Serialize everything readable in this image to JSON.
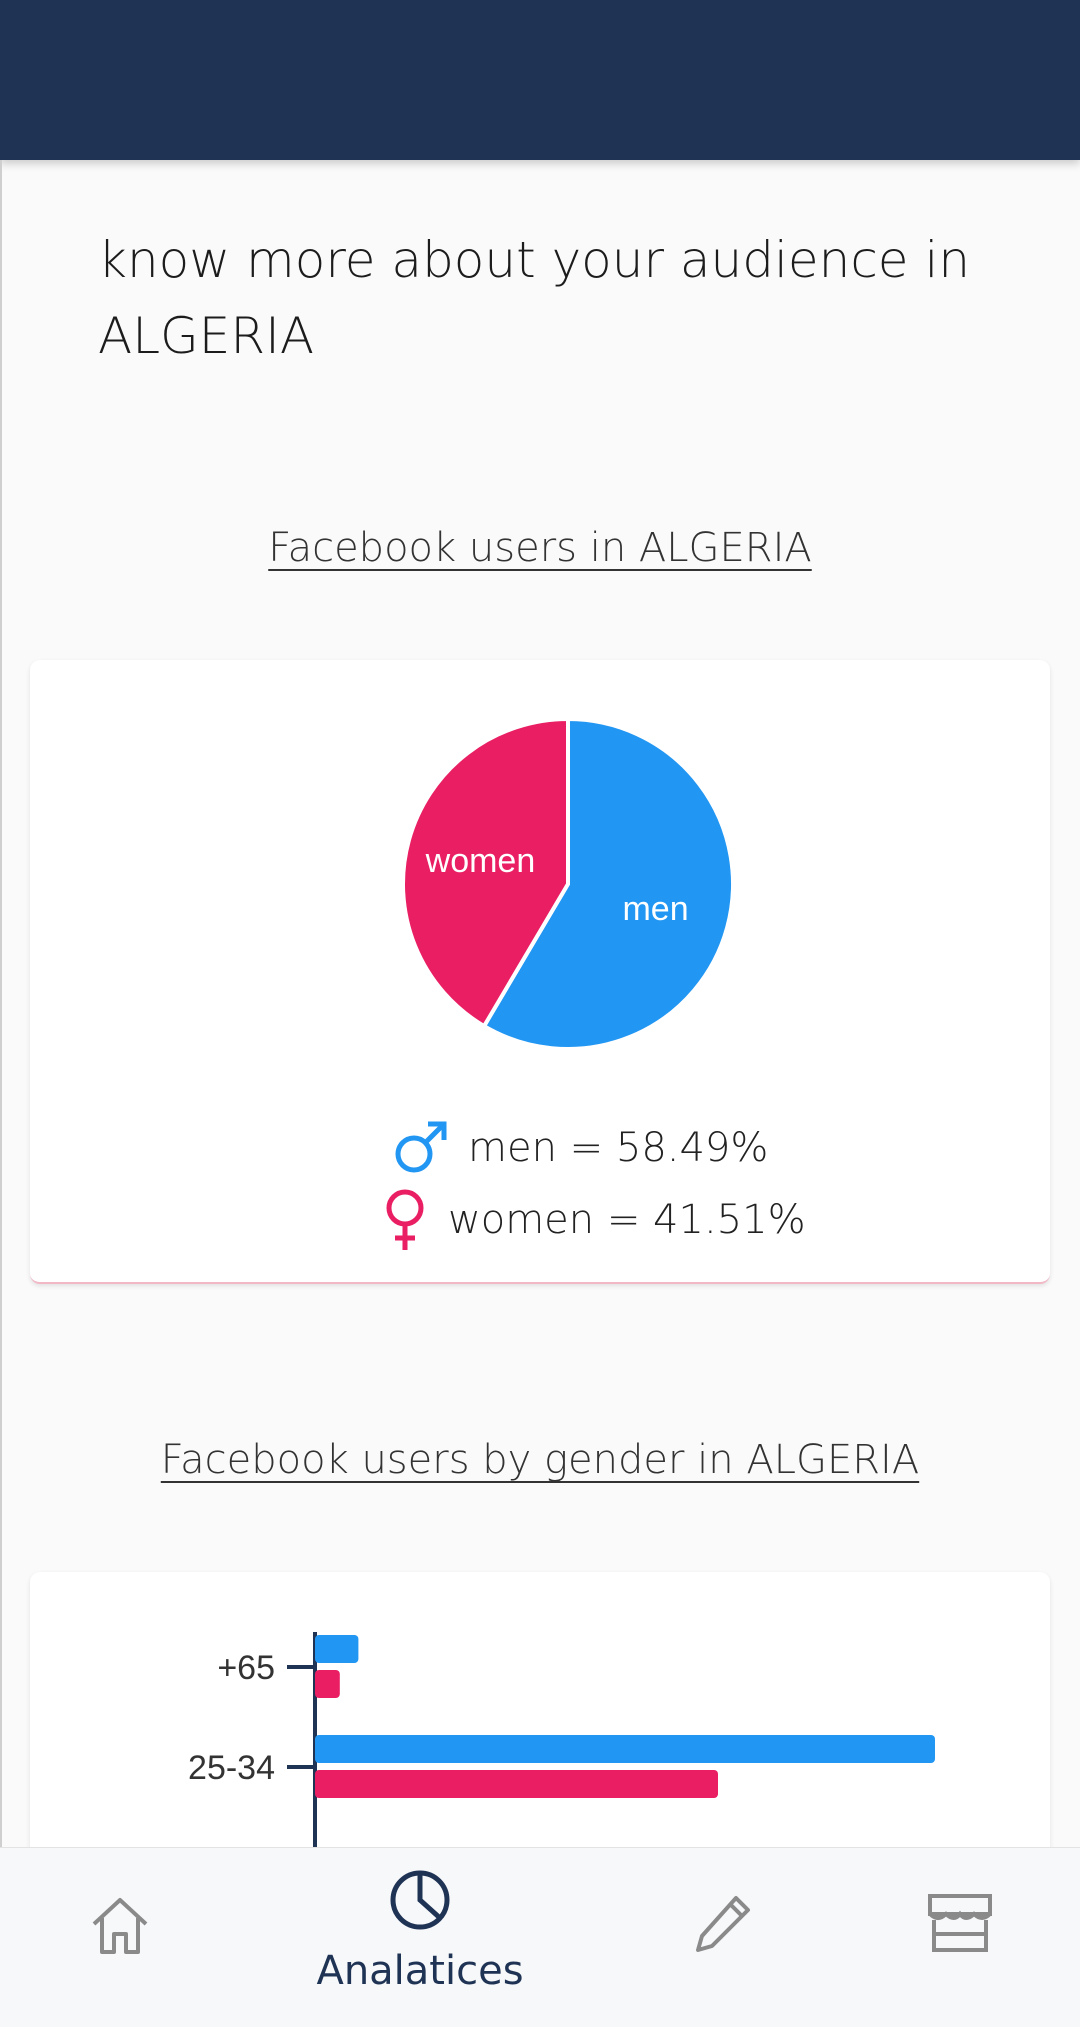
{
  "heading": "know more about your  audience in ALGERIA",
  "section1": {
    "title": "Facebook users in  ALGERIA"
  },
  "section2": {
    "title": "Facebook users by gender in   ALGERIA"
  },
  "colors": {
    "men": "#2196f3",
    "women": "#e91e63",
    "header": "#1f3354",
    "axis": "#1f3354"
  },
  "chart_data": [
    {
      "type": "pie",
      "slices": [
        {
          "label": "men",
          "value": 58.49
        },
        {
          "label": "women",
          "value": 41.51
        }
      ],
      "legend": [
        "men = 58.49%",
        "women = 41.51%"
      ]
    },
    {
      "type": "bar",
      "orientation": "horizontal",
      "categories": [
        "+65",
        "25-34"
      ],
      "series": [
        {
          "values": [
            7,
            100
          ]
        },
        {
          "values": [
            4,
            65
          ]
        }
      ]
    }
  ],
  "nav": {
    "active_label": "Analatices",
    "items": [
      "home-icon",
      "pie-chart-icon",
      "pencil-icon",
      "store-icon"
    ]
  }
}
